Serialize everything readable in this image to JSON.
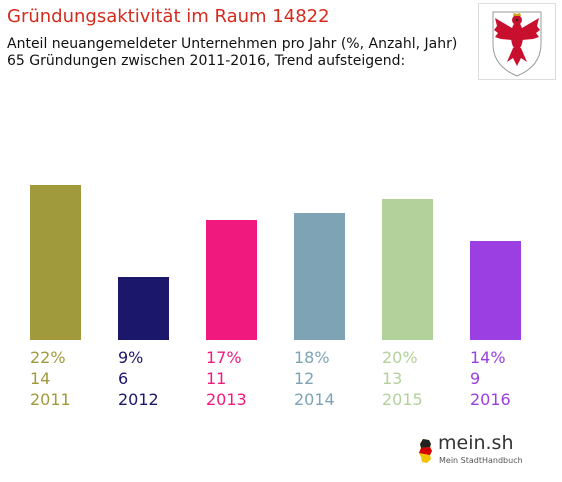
{
  "header": {
    "title": "Gründungsaktivität im Raum 14822",
    "subtitle_line1": "Anteil neuangemeldeter Unternehmen pro Jahr (%, Anzahl, Jahr)",
    "subtitle_line2": "65 Gründungen zwischen 2011-2016, Trend aufsteigend:"
  },
  "logo": {
    "name": "mein.sh",
    "tagline": "Mein StadtHandbuch"
  },
  "chart_data": {
    "type": "bar",
    "categories": [
      "2011",
      "2012",
      "2013",
      "2014",
      "2015",
      "2016"
    ],
    "values": [
      22,
      9,
      17,
      18,
      20,
      14
    ],
    "counts": [
      14,
      6,
      11,
      12,
      13,
      9
    ],
    "percent_labels": [
      "22%",
      "9%",
      "17%",
      "18%",
      "20%",
      "14%"
    ],
    "colors": [
      "#a09a3c",
      "#1b176b",
      "#f0197d",
      "#7da3b5",
      "#b3d19b",
      "#9b3fe3"
    ],
    "ylim": [
      0,
      22
    ],
    "grid": false,
    "legend": "none"
  }
}
